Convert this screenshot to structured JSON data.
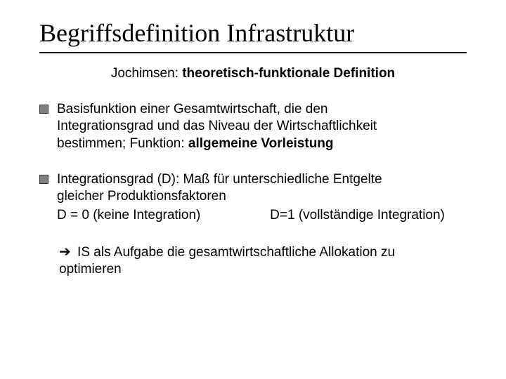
{
  "title": "Begriffsdefinition Infrastruktur",
  "subtitle": {
    "lead": "Jochimsen: ",
    "bold": "theoretisch-funktionale Definition"
  },
  "bullets": [
    {
      "line1_a": "Basisfunktion einer Gesamtwirtschaft, die den",
      "line2_a": "Integrationsgrad und das Niveau der Wirtschaftlichkeit",
      "line3_a": "bestimmen; Funktion: ",
      "line3_b": "allgemeine Vorleistung"
    },
    {
      "line1_a": "Integrationsgrad (D): Maß für unterschiedliche Entgelte",
      "line2_a": "gleicher Produktionsfaktoren",
      "d0": "D = 0 (keine Integration)",
      "d1": "D=1 (vollständige Integration)"
    }
  ],
  "conclusion": {
    "arrow": "➔",
    "line1": " IS als Aufgabe die gesamtwirtschaftliche Allokation zu",
    "line2": "optimieren"
  },
  "colors": {
    "rule": "#000000",
    "bullet_fill": "#808080",
    "bullet_border": "#333333",
    "text": "#000000",
    "background": "#ffffff"
  }
}
